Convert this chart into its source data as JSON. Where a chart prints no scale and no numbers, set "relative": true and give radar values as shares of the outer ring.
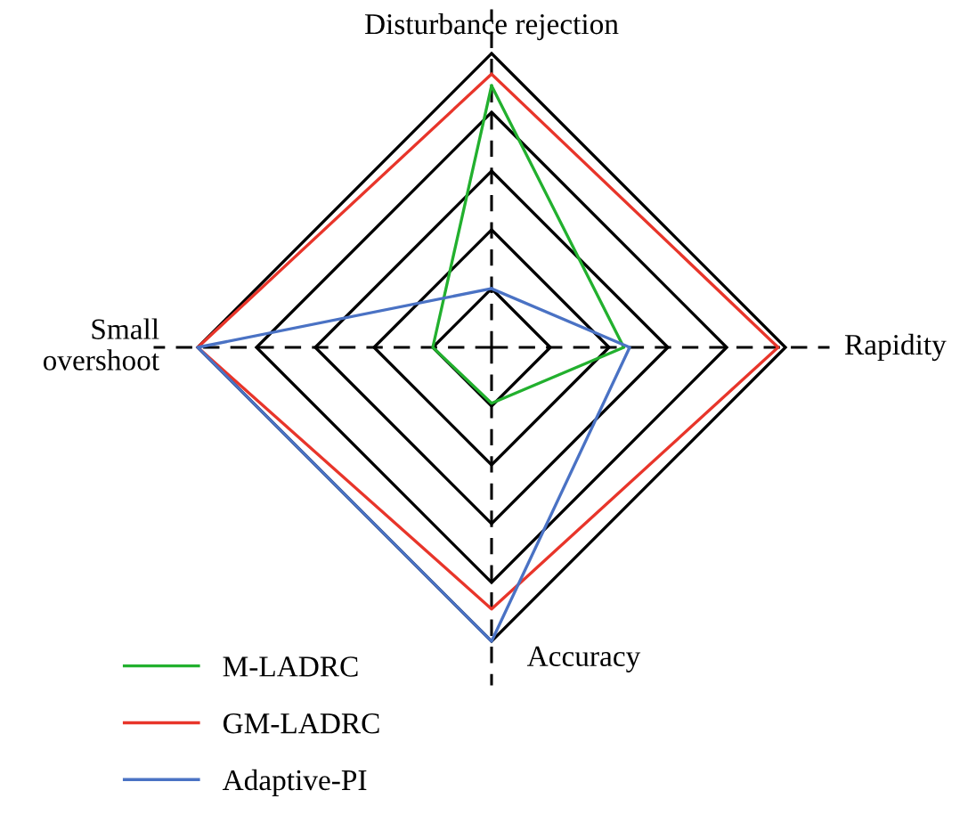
{
  "chart_data": {
    "type": "radar",
    "relative": true,
    "categories": [
      "Disturbance rejection",
      "Rapidity",
      "Accuracy",
      "Small\novershoot"
    ],
    "series": [
      {
        "name": "M-LADRC",
        "color": "#22b02e",
        "values": [
          0.89,
          0.45,
          0.19,
          0.2
        ]
      },
      {
        "name": "GM-LADRC",
        "color": "#e8352a",
        "values": [
          0.93,
          0.975,
          0.89,
          1.0
        ]
      },
      {
        "name": "Adaptive-PI",
        "color": "#4a72c4",
        "values": [
          0.2,
          0.47,
          1.0,
          1.0
        ]
      }
    ],
    "grid": true,
    "legend": "bottom left",
    "line_style": "solid",
    "marker": "none"
  }
}
